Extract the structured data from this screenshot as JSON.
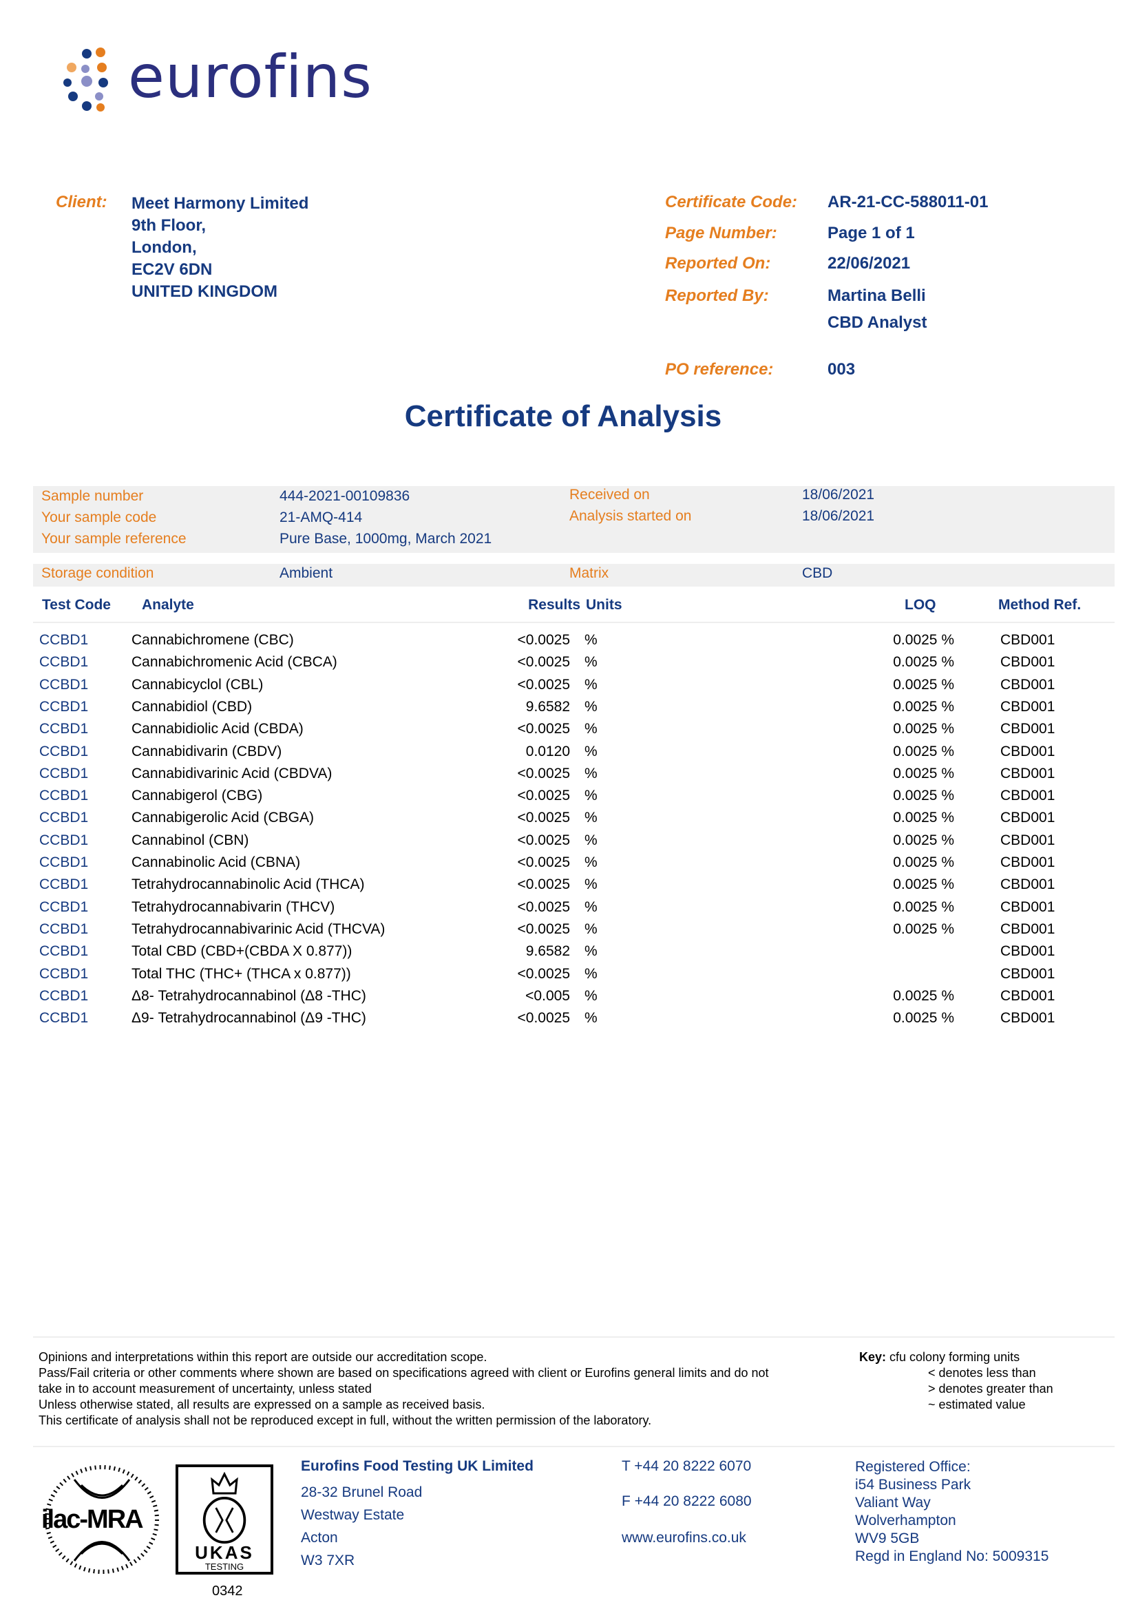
{
  "brand": {
    "name": "eurofins",
    "colors": {
      "navy": "#163a80",
      "orange": "#e57e1f",
      "lavender": "#8b8fc7"
    }
  },
  "client": {
    "label": "Client:",
    "lines": [
      "Meet Harmony Limited",
      "9th Floor,",
      "London,",
      "EC2V 6DN",
      "UNITED KINGDOM"
    ]
  },
  "meta": [
    {
      "label": "Certificate Code:",
      "value": "AR-21-CC-588011-01"
    },
    {
      "label": "Page Number:",
      "value": "Page 1 of 1"
    },
    {
      "label": "Reported On:",
      "value": "22/06/2021"
    },
    {
      "label": "Reported By:",
      "value": "Martina Belli",
      "value2": "CBD Analyst"
    },
    {
      "label": "PO reference:",
      "value": "003"
    }
  ],
  "title": "Certificate of Analysis",
  "sample": {
    "rows": [
      {
        "l1": "Sample number",
        "v1": "444-2021-00109836",
        "l2": "Received on",
        "v2": "18/06/2021"
      },
      {
        "l1": "Your sample code",
        "v1": "21-AMQ-414",
        "l2": "Analysis started on",
        "v2": "18/06/2021"
      },
      {
        "l1": "Your sample reference",
        "v1": "Pure Base, 1000mg, March 2021",
        "l2": "",
        "v2": ""
      }
    ],
    "storage": {
      "l1": "Storage condition",
      "v1": "Ambient",
      "l2": "Matrix",
      "v2": "CBD"
    }
  },
  "table": {
    "headers": {
      "code": "Test Code",
      "analyte": "Analyte",
      "results": "Results",
      "units": "Units",
      "loq": "LOQ",
      "method": "Method Ref."
    },
    "rows": [
      [
        "CCBD1",
        "Cannabichromene (CBC)",
        "<0.0025",
        "%",
        "0.0025 %",
        "CBD001"
      ],
      [
        "CCBD1",
        "Cannabichromenic Acid (CBCA)",
        "<0.0025",
        "%",
        "0.0025 %",
        "CBD001"
      ],
      [
        "CCBD1",
        "Cannabicyclol (CBL)",
        "<0.0025",
        "%",
        "0.0025 %",
        "CBD001"
      ],
      [
        "CCBD1",
        "Cannabidiol (CBD)",
        "9.6582",
        "%",
        "0.0025 %",
        "CBD001"
      ],
      [
        "CCBD1",
        "Cannabidiolic Acid (CBDA)",
        "<0.0025",
        "%",
        "0.0025 %",
        "CBD001"
      ],
      [
        "CCBD1",
        "Cannabidivarin (CBDV)",
        "0.0120",
        "%",
        "0.0025 %",
        "CBD001"
      ],
      [
        "CCBD1",
        "Cannabidivarinic Acid (CBDVA)",
        "<0.0025",
        "%",
        "0.0025 %",
        "CBD001"
      ],
      [
        "CCBD1",
        "Cannabigerol (CBG)",
        "<0.0025",
        "%",
        "0.0025 %",
        "CBD001"
      ],
      [
        "CCBD1",
        "Cannabigerolic Acid (CBGA)",
        "<0.0025",
        "%",
        "0.0025 %",
        "CBD001"
      ],
      [
        "CCBD1",
        "Cannabinol (CBN)",
        "<0.0025",
        "%",
        "0.0025 %",
        "CBD001"
      ],
      [
        "CCBD1",
        "Cannabinolic Acid (CBNA)",
        "<0.0025",
        "%",
        "0.0025 %",
        "CBD001"
      ],
      [
        "CCBD1",
        "Tetrahydrocannabinolic Acid (THCA)",
        "<0.0025",
        "%",
        "0.0025 %",
        "CBD001"
      ],
      [
        "CCBD1",
        "Tetrahydrocannabivarin (THCV)",
        "<0.0025",
        "%",
        "0.0025 %",
        "CBD001"
      ],
      [
        "CCBD1",
        "Tetrahydrocannabivarinic Acid (THCVA)",
        "<0.0025",
        "%",
        "0.0025 %",
        "CBD001"
      ],
      [
        "CCBD1",
        "Total CBD (CBD+(CBDA X 0.877))",
        "9.6582",
        "%",
        "",
        "CBD001"
      ],
      [
        "CCBD1",
        "Total THC (THC+ (THCA x 0.877))",
        "<0.0025",
        "%",
        "",
        "CBD001"
      ],
      [
        "CCBD1",
        "Δ8- Tetrahydrocannabinol (Δ8 -THC)",
        "<0.005",
        "%",
        "0.0025 %",
        "CBD001"
      ],
      [
        "CCBD1",
        "Δ9- Tetrahydrocannabinol (Δ9 -THC)",
        "<0.0025",
        "%",
        "0.0025 %",
        "CBD001"
      ]
    ]
  },
  "notes": [
    "Opinions and interpretations within this report are outside our accreditation scope.",
    "Pass/Fail criteria or other comments where shown are based on specifications agreed with client or Eurofins general limits and do not",
    "take in to account measurement of uncertainty, unless stated",
    "Unless otherwise stated, all results are expressed on a sample as received basis.",
    "This certificate of analysis shall not be reproduced except in full, without the written permission of the laboratory."
  ],
  "key": {
    "label": "Key:",
    "first": "cfu colony forming units",
    "items": [
      "< denotes less than",
      "> denotes greater than",
      "~ estimated value"
    ]
  },
  "accreditation": {
    "ilac": "ilac-MRA",
    "ukas": "UKAS",
    "ukas_sub": "TESTING",
    "number": "0342"
  },
  "company": {
    "name": "Eurofins Food Testing UK Limited",
    "lines": [
      "28-32 Brunel Road",
      "Westway Estate",
      "Acton",
      "W3 7XR"
    ]
  },
  "contact": {
    "phone": "T  +44 20 8222 6070",
    "fax": "F  +44 20 8222 6080",
    "web": "www.eurofins.co.uk"
  },
  "registered": [
    "Registered Office:",
    "i54 Business Park",
    "Valiant Way",
    "Wolverhampton",
    "WV9 5GB",
    "Regd in England No: 5009315"
  ]
}
